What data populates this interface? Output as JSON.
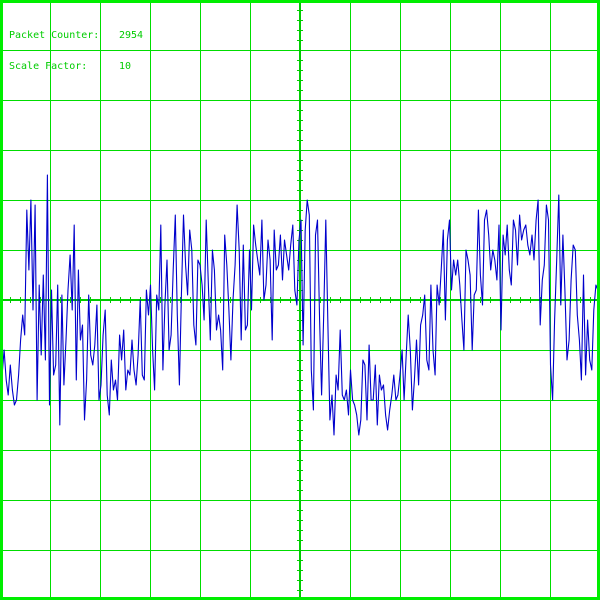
{
  "readout": {
    "packet_counter_label": "Packet Counter:",
    "packet_counter_value": "2954",
    "scale_factor_label": "Scale Factor:",
    "scale_factor_value": "10"
  },
  "colors": {
    "background": "#ffffff",
    "grid": "#00dd00",
    "axis": "#00cc00",
    "frame": "#00ee00",
    "trace": "#0000cc",
    "text": "#00cc00"
  },
  "grid": {
    "divisions_x": 12,
    "divisions_y": 12,
    "minor_ticks_per_division": 5
  },
  "trace": {
    "samples": [
      -2.4,
      -1.5,
      -1.0,
      -1.6,
      -1.9,
      -1.3,
      -1.8,
      -2.1,
      -2.0,
      -1.5,
      -0.8,
      -0.3,
      -0.7,
      1.8,
      0.6,
      2.0,
      -0.2,
      1.9,
      -2.0,
      0.3,
      -1.1,
      0.5,
      -1.2,
      2.5,
      -2.1,
      0.2,
      -1.5,
      -1.3,
      0.3,
      -2.5,
      0.1,
      -1.7,
      -0.8,
      0.2,
      0.9,
      -0.2,
      1.5,
      -1.6,
      0.6,
      -0.8,
      -0.5,
      -2.4,
      -1.6,
      0.1,
      -1.1,
      -1.3,
      -0.9,
      -0.1,
      -2.0,
      -1.7,
      -0.7,
      -0.2,
      -1.9,
      -2.3,
      -1.2,
      -1.8,
      -1.6,
      -2.0,
      -0.7,
      -1.2,
      -0.6,
      -1.8,
      -1.4,
      -1.5,
      -0.8,
      -1.4,
      -1.7,
      -1.1,
      0.0,
      -1.5,
      -1.6,
      0.2,
      -0.3,
      0.3,
      -1.0,
      -1.8,
      0.1,
      -0.2,
      1.5,
      -1.4,
      -0.1,
      0.8,
      -1.0,
      -0.7,
      0.6,
      1.7,
      -0.3,
      -1.7,
      0.1,
      1.7,
      0.7,
      0.1,
      1.4,
      1.0,
      -0.5,
      -0.9,
      0.8,
      0.7,
      0.3,
      -0.4,
      1.6,
      0.4,
      -0.8,
      1.0,
      0.6,
      -0.6,
      -0.3,
      -0.6,
      -1.4,
      1.3,
      0.7,
      -0.2,
      -1.2,
      0.0,
      0.7,
      1.9,
      1.0,
      -0.8,
      1.1,
      -0.6,
      -0.5,
      1.0,
      -0.2,
      1.5,
      1.1,
      0.8,
      0.5,
      1.6,
      0.0,
      0.3,
      1.2,
      0.8,
      -0.8,
      1.4,
      0.6,
      0.7,
      1.3,
      0.4,
      1.2,
      0.9,
      0.6,
      1.1,
      1.5,
      0.2,
      -0.1,
      1.2,
      1.6,
      -0.9,
      1.4,
      2.0,
      1.7,
      -1.4,
      -2.2,
      1.3,
      1.6,
      -0.4,
      -1.9,
      -0.3,
      1.6,
      -0.4,
      -2.4,
      -1.9,
      -2.7,
      -1.5,
      -1.8,
      -0.6,
      -1.9,
      -2.0,
      -1.8,
      -2.3,
      -1.4,
      -2.0,
      -2.1,
      -2.3,
      -2.7,
      -2.4,
      -1.2,
      -1.3,
      -2.4,
      -0.9,
      -2.0,
      -2.0,
      -1.3,
      -2.5,
      -1.5,
      -1.8,
      -1.7,
      -2.3,
      -2.6,
      -2.2,
      -1.9,
      -1.5,
      -2.0,
      -1.9,
      -1.5,
      -1.0,
      -2.0,
      -1.1,
      -0.3,
      -1.0,
      -2.2,
      -1.6,
      -0.8,
      -1.7,
      -0.5,
      -0.3,
      0.1,
      -1.2,
      -1.4,
      0.3,
      -1.0,
      -1.5,
      0.3,
      -0.1,
      0.6,
      1.4,
      -0.4,
      1.2,
      1.6,
      0.2,
      0.8,
      0.5,
      0.8,
      0.3,
      -0.4,
      -1.0,
      1.0,
      0.8,
      0.5,
      -1.0,
      0.1,
      0.2,
      1.8,
      0.5,
      -0.1,
      1.6,
      1.8,
      1.3,
      0.6,
      1.0,
      0.8,
      0.4,
      1.5,
      -0.6,
      1.3,
      0.9,
      1.5,
      0.6,
      0.3,
      1.6,
      1.4,
      0.7,
      1.7,
      1.2,
      1.4,
      1.5,
      1.1,
      0.9,
      1.3,
      0.8,
      1.6,
      2.0,
      -0.5,
      0.4,
      0.7,
      1.9,
      1.6,
      -1.3,
      -2.0,
      -0.4,
      0.8,
      2.1,
      -0.1,
      1.3,
      0.2,
      -1.2,
      -0.8,
      0.4,
      1.1,
      1.0,
      -0.3,
      -0.8,
      -1.6,
      0.5,
      -1.5,
      -0.4,
      -1.2,
      -1.4,
      -0.2,
      0.3,
      0.2,
      -1.0
    ]
  }
}
